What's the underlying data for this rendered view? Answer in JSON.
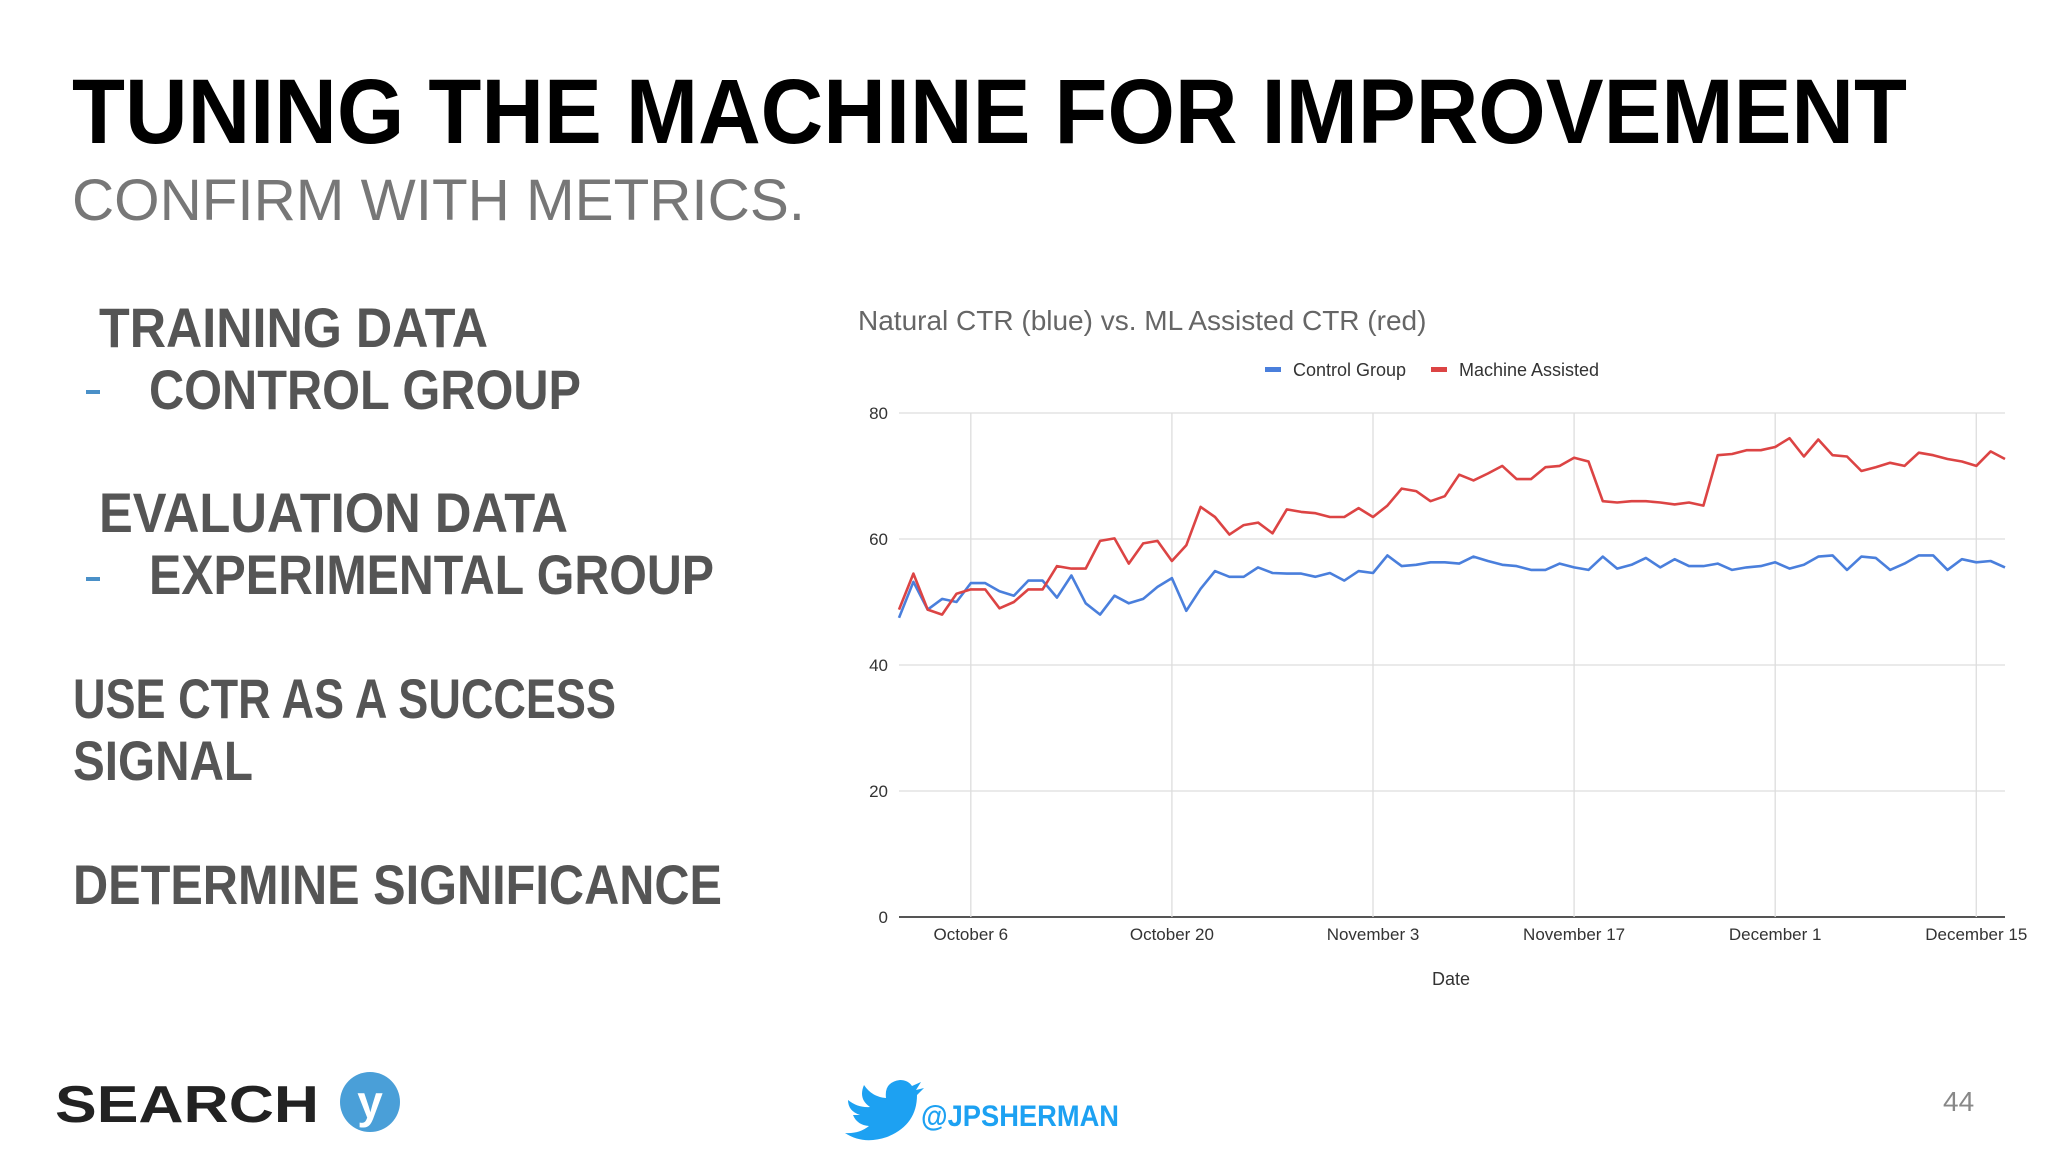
{
  "title": "TUNING THE MACHINE FOR IMPROVEMENT",
  "subtitle": "CONFIRM WITH METRICS.",
  "body": [
    {
      "heading": "TRAINING DATA",
      "item": "CONTROL GROUP"
    },
    {
      "heading": "EVALUATION DATA",
      "item": "EXPERIMENTAL GROUP"
    },
    {
      "lines": [
        "USE CTR AS A SUCCESS",
        "SIGNAL"
      ]
    },
    {
      "lines": [
        "DETERMINE SIGNIFICANCE"
      ]
    }
  ],
  "logo": "SEARCH",
  "logo_mark": "y",
  "handle": "@JPSHERMAN",
  "page_number": 44,
  "chart_data": {
    "type": "line",
    "title": "Natural CTR (blue) vs. ML Assisted CTR (red)",
    "x_label": "Date",
    "x": [
      "October 1",
      "October 2",
      "October 3",
      "October 4",
      "October 5",
      "October 6",
      "October 7",
      "October 8",
      "October 9",
      "October 10",
      "October 11",
      "October 12",
      "October 13",
      "October 14",
      "October 15",
      "October 16",
      "October 17",
      "October 18",
      "October 19",
      "October 20",
      "October 21",
      "October 22",
      "October 23",
      "October 24",
      "October 25",
      "October 26",
      "October 27",
      "October 28",
      "October 29",
      "October 30",
      "October 31",
      "November 1",
      "November 2",
      "November 3",
      "November 4",
      "November 5",
      "November 6",
      "November 7",
      "November 8",
      "November 9",
      "November 10",
      "November 11",
      "November 12",
      "November 13",
      "November 14",
      "November 15",
      "November 16",
      "November 17",
      "November 18",
      "November 19",
      "November 20",
      "November 21",
      "November 22",
      "November 23",
      "November 24",
      "November 25",
      "November 26",
      "November 27",
      "November 28",
      "November 29",
      "November 30",
      "December 1",
      "December 2",
      "December 3",
      "December 4",
      "December 5",
      "December 6",
      "December 7",
      "December 8",
      "December 9",
      "December 10",
      "December 11",
      "December 12",
      "December 13",
      "December 14",
      "December 15",
      "December 16",
      "December 17"
    ],
    "xticks": [
      "October 6",
      "October 20",
      "November 3",
      "November 17",
      "December 1",
      "December 15"
    ],
    "ylim": [
      0,
      80
    ],
    "yticks": [
      0,
      20,
      40,
      60,
      80
    ],
    "grid": true,
    "legend": "top",
    "series": [
      {
        "name": "Control Group",
        "color": "#4a7fdc",
        "values": [
          47.5,
          53.2,
          48.8,
          50.5,
          50,
          53,
          53,
          51.7,
          51,
          53.4,
          53.4,
          50.7,
          54.2,
          49.8,
          48,
          51,
          49.8,
          50.5,
          52.4,
          53.8,
          48.6,
          52.1,
          54.9,
          54,
          54,
          55.5,
          54.6,
          54.5,
          54.5,
          54,
          54.6,
          53.4,
          54.9,
          54.6,
          57.4,
          55.7,
          55.9,
          56.3,
          56.3,
          56.1,
          57.2,
          56.5,
          55.9,
          55.7,
          55.1,
          55.1,
          56.1,
          55.5,
          55.1,
          57.2,
          55.3,
          55.9,
          57,
          55.5,
          56.8,
          55.7,
          55.7,
          56.1,
          55.1,
          55.5,
          55.7,
          56.3,
          55.3,
          55.9,
          57.2,
          57.4,
          55.1,
          57.2,
          57,
          55.1,
          56.1,
          57.4,
          57.4,
          55.1,
          56.8,
          56.3,
          56.5,
          55.5
        ]
      },
      {
        "name": "Machine Assisted",
        "color": "#dc4444",
        "values": [
          48.8,
          54.5,
          48.8,
          48,
          51.3,
          52,
          52,
          49,
          50,
          52,
          52,
          55.7,
          55.3,
          55.3,
          59.7,
          60.1,
          56.1,
          59.3,
          59.7,
          56.5,
          59,
          65.1,
          63.5,
          60.7,
          62.2,
          62.6,
          60.9,
          64.7,
          64.3,
          64.1,
          63.5,
          63.5,
          64.9,
          63.5,
          65.3,
          68,
          67.6,
          66,
          66.8,
          70.2,
          69.3,
          70.4,
          71.6,
          69.5,
          69.5,
          71.4,
          71.6,
          72.9,
          72.3,
          66,
          65.8,
          66,
          66,
          65.8,
          65.5,
          65.8,
          65.3,
          73.3,
          73.5,
          74.1,
          74.1,
          74.6,
          76,
          73.1,
          75.8,
          73.3,
          73.1,
          70.8,
          71.4,
          72.1,
          71.6,
          73.7,
          73.3,
          72.7,
          72.3,
          71.6,
          73.9,
          72.7
        ]
      }
    ]
  }
}
